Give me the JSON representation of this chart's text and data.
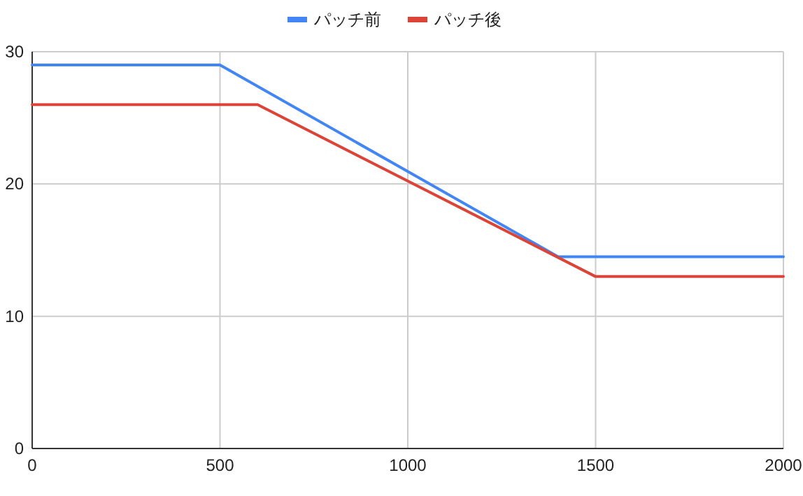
{
  "chart_data": {
    "type": "line",
    "xlim": [
      0,
      2000
    ],
    "xticks": [
      0,
      500,
      1000,
      1500,
      2000
    ],
    "ylim": [
      0,
      30
    ],
    "yticks": [
      0,
      10,
      20,
      30
    ],
    "grid": true,
    "legend": "top",
    "series": [
      {
        "name": "パッチ前",
        "color": "#4285f4",
        "x": [
          0,
          500,
          1400,
          2000
        ],
        "values": [
          29,
          29,
          14.5,
          14.5
        ]
      },
      {
        "name": "パッチ後",
        "color": "#db4437",
        "x": [
          0,
          600,
          1500,
          2000
        ],
        "values": [
          26,
          26,
          13,
          13
        ]
      }
    ]
  }
}
